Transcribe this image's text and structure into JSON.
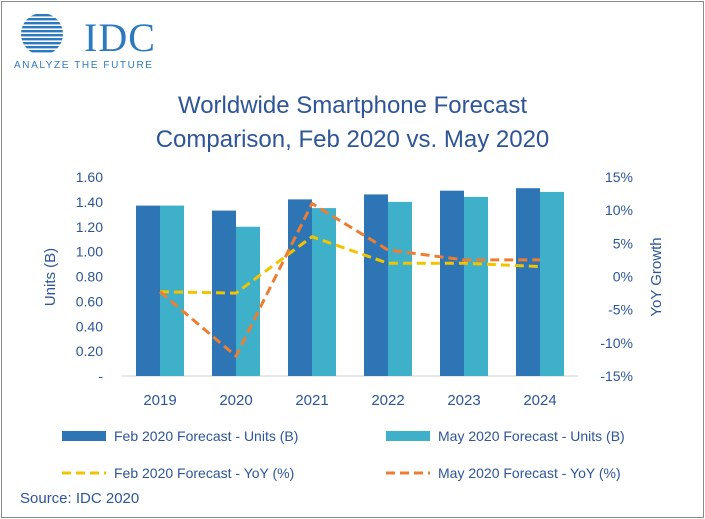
{
  "logo": {
    "name": "IDC",
    "tagline": "ANALYZE THE FUTURE"
  },
  "title_lines": [
    "Worldwide Smartphone Forecast",
    "Comparison, Feb 2020 vs. May 2020"
  ],
  "source": "Source: IDC 2020",
  "colors": {
    "feb_units": "#2e75b6",
    "may_units": "#3fb0c9",
    "feb_yoy": "#f2c400",
    "may_yoy": "#ed7d31",
    "text": "#2e5597"
  },
  "chart_data": {
    "type": "bar",
    "title": "Worldwide Smartphone Forecast Comparison, Feb 2020 vs. May 2020",
    "categories": [
      "2019",
      "2020",
      "2021",
      "2022",
      "2023",
      "2024"
    ],
    "ylabel": "Units (B)",
    "y2label": "YoY Growth",
    "ylim": [
      0,
      1.6
    ],
    "y2lim": [
      -15,
      15
    ],
    "y_ticks": [
      "-",
      "0.20",
      "0.40",
      "0.60",
      "0.80",
      "1.00",
      "1.20",
      "1.40",
      "1.60"
    ],
    "y2_ticks": [
      "-15%",
      "-10%",
      "-5%",
      "0%",
      "5%",
      "10%",
      "15%"
    ],
    "series": [
      {
        "name": "Feb 2020 Forecast - Units (B)",
        "kind": "bar",
        "axis": "left",
        "values": [
          1.37,
          1.33,
          1.42,
          1.46,
          1.49,
          1.51
        ]
      },
      {
        "name": "May 2020 Forecast - Units (B)",
        "kind": "bar",
        "axis": "left",
        "values": [
          1.37,
          1.2,
          1.35,
          1.4,
          1.44,
          1.48
        ]
      },
      {
        "name": "Feb 2020 Forecast - YoY (%)",
        "kind": "dashed-line",
        "axis": "right",
        "values": [
          -2.3,
          -2.5,
          6.0,
          2.0,
          2.0,
          1.5
        ]
      },
      {
        "name": "May 2020 Forecast - YoY (%)",
        "kind": "dashed-line",
        "axis": "right",
        "values": [
          -2.3,
          -12.0,
          11.0,
          4.0,
          2.5,
          2.5
        ]
      }
    ],
    "grid": false,
    "legend": "bottom"
  }
}
